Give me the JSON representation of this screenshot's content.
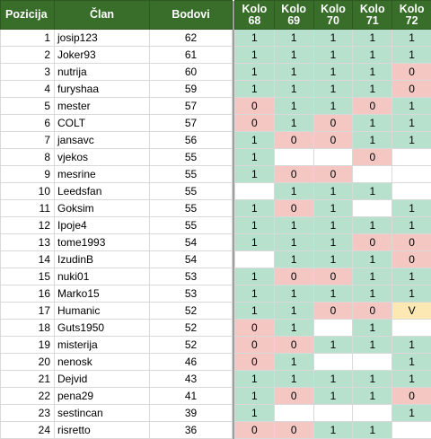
{
  "headers": {
    "pozicija": "Pozicija",
    "clan": "Član",
    "bodovi": "Bodovi",
    "kola": [
      {
        "line1": "Kolo",
        "line2": "68"
      },
      {
        "line1": "Kolo",
        "line2": "69"
      },
      {
        "line1": "Kolo",
        "line2": "70"
      },
      {
        "line1": "Kolo",
        "line2": "71"
      },
      {
        "line1": "Kolo",
        "line2": "72"
      }
    ]
  },
  "colors": {
    "header_bg": "#386d2a",
    "result_1": "#b7e1cd",
    "result_0": "#f4c7c3",
    "result_V": "#fce8b2",
    "separator": "#9e9e9e"
  },
  "rows": [
    {
      "pos": "1",
      "clan": "josip123",
      "bodovi": "62",
      "kola": [
        "1",
        "1",
        "1",
        "1",
        "1"
      ]
    },
    {
      "pos": "2",
      "clan": "Joker93",
      "bodovi": "61",
      "kola": [
        "1",
        "1",
        "1",
        "1",
        "1"
      ]
    },
    {
      "pos": "3",
      "clan": "nutrija",
      "bodovi": "60",
      "kola": [
        "1",
        "1",
        "1",
        "1",
        "0"
      ]
    },
    {
      "pos": "4",
      "clan": "furyshaa",
      "bodovi": "59",
      "kola": [
        "1",
        "1",
        "1",
        "1",
        "0"
      ]
    },
    {
      "pos": "5",
      "clan": "mester",
      "bodovi": "57",
      "kola": [
        "0",
        "1",
        "1",
        "0",
        "1"
      ]
    },
    {
      "pos": "6",
      "clan": "COLT",
      "bodovi": "57",
      "kola": [
        "0",
        "1",
        "0",
        "1",
        "1"
      ]
    },
    {
      "pos": "7",
      "clan": "jansavc",
      "bodovi": "56",
      "kola": [
        "1",
        "0",
        "0",
        "1",
        "1"
      ]
    },
    {
      "pos": "8",
      "clan": "vjekos",
      "bodovi": "55",
      "kola": [
        "1",
        "",
        "",
        "0",
        ""
      ]
    },
    {
      "pos": "9",
      "clan": "mesrine",
      "bodovi": "55",
      "kola": [
        "1",
        "0",
        "0",
        "",
        ""
      ]
    },
    {
      "pos": "10",
      "clan": "Leedsfan",
      "bodovi": "55",
      "kola": [
        "",
        "1",
        "1",
        "1",
        ""
      ]
    },
    {
      "pos": "11",
      "clan": "Goksim",
      "bodovi": "55",
      "kola": [
        "1",
        "0",
        "1",
        "",
        "1"
      ]
    },
    {
      "pos": "12",
      "clan": "Ipoje4",
      "bodovi": "55",
      "kola": [
        "1",
        "1",
        "1",
        "1",
        "1"
      ]
    },
    {
      "pos": "13",
      "clan": "tome1993",
      "bodovi": "54",
      "kola": [
        "1",
        "1",
        "1",
        "0",
        "0"
      ]
    },
    {
      "pos": "14",
      "clan": "IzudinB",
      "bodovi": "54",
      "kola": [
        "",
        "1",
        "1",
        "1",
        "0"
      ]
    },
    {
      "pos": "15",
      "clan": "nuki01",
      "bodovi": "53",
      "kola": [
        "1",
        "0",
        "0",
        "1",
        "1"
      ]
    },
    {
      "pos": "16",
      "clan": "Marko15",
      "bodovi": "53",
      "kola": [
        "1",
        "1",
        "1",
        "1",
        "1"
      ]
    },
    {
      "pos": "17",
      "clan": "Humanic",
      "bodovi": "52",
      "kola": [
        "1",
        "1",
        "0",
        "0",
        "V"
      ]
    },
    {
      "pos": "18",
      "clan": "Guts1950",
      "bodovi": "52",
      "kola": [
        "0",
        "1",
        "",
        "1",
        ""
      ]
    },
    {
      "pos": "19",
      "clan": "misterija",
      "bodovi": "52",
      "kola": [
        "0",
        "0",
        "1",
        "1",
        "1"
      ]
    },
    {
      "pos": "20",
      "clan": "nenosk",
      "bodovi": "46",
      "kola": [
        "0",
        "1",
        "",
        "",
        "1"
      ]
    },
    {
      "pos": "21",
      "clan": "Dejvid",
      "bodovi": "43",
      "kola": [
        "1",
        "1",
        "1",
        "1",
        "1"
      ]
    },
    {
      "pos": "22",
      "clan": "pena29",
      "bodovi": "41",
      "kola": [
        "1",
        "0",
        "1",
        "1",
        "0"
      ]
    },
    {
      "pos": "23",
      "clan": "sestincan",
      "bodovi": "39",
      "kola": [
        "1",
        "",
        "",
        "",
        "1"
      ]
    },
    {
      "pos": "24",
      "clan": "risretto",
      "bodovi": "36",
      "kola": [
        "0",
        "0",
        "1",
        "1",
        ""
      ]
    }
  ]
}
